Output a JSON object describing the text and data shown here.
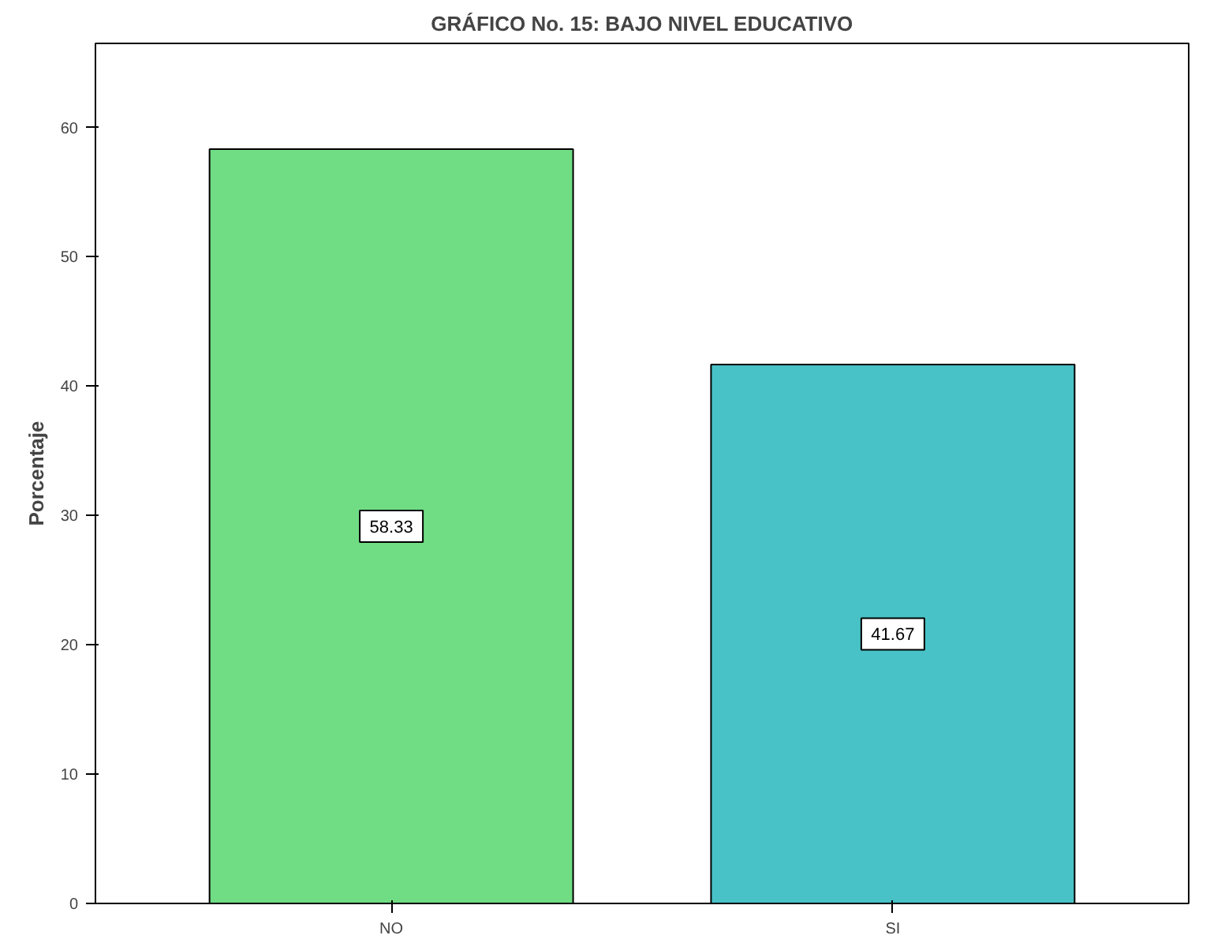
{
  "chart_data": {
    "type": "bar",
    "title": "GRÁFICO No. 15: BAJO NIVEL EDUCATIVO",
    "ylabel": "Porcentaje",
    "categories": [
      "NO",
      "SI"
    ],
    "values": [
      58.33,
      41.67
    ],
    "colors": [
      "#70dc84",
      "#48c2c6"
    ],
    "ylim": [
      0,
      66.5
    ],
    "yticks": [
      0,
      10,
      20,
      30,
      40,
      50,
      60
    ],
    "data_labels": true,
    "grid": false
  }
}
